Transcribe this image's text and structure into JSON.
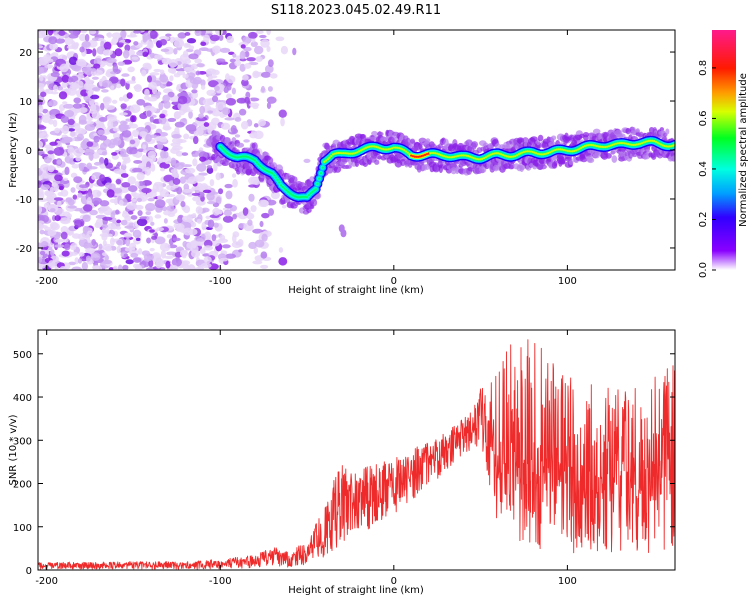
{
  "title": "S118.2023.045.02.49.R11",
  "chart_data": [
    {
      "type": "heatmap",
      "xlabel": "Height of straight line (km)",
      "ylabel": "Frequency (Hz)",
      "xlim": [
        -205,
        162
      ],
      "ylim": [
        -24.5,
        24.5
      ],
      "xticks": [
        -200,
        -100,
        0,
        100
      ],
      "yticks": [
        -20,
        -10,
        0,
        10,
        20
      ],
      "colorbar": {
        "label": "Normalized spectral amplitude",
        "range": [
          0,
          0.95
        ],
        "ticks": [
          "0.0",
          "0.2",
          "0.4",
          "0.6",
          "0.8"
        ],
        "tick_values": [
          0,
          0.2,
          0.4,
          0.6,
          0.8
        ],
        "colormap": "rainbow (purple-blue-cyan-green-yellow-red-pink)"
      },
      "ridge_line": {
        "x": [
          -100,
          -90,
          -80,
          -70,
          -65,
          -60,
          -55,
          -50,
          -45,
          -40,
          -35,
          -30,
          -20,
          -10,
          0,
          10,
          20,
          30,
          40,
          50,
          60,
          70,
          80,
          90,
          100,
          110,
          120,
          130,
          140,
          150,
          160
        ],
        "y": [
          0.5,
          -1.5,
          -2,
          -5,
          -7.5,
          -8.5,
          -9.5,
          -10,
          -8,
          -2,
          -1,
          -1,
          0,
          0.5,
          0.5,
          -1,
          -1,
          -1,
          -1.5,
          -1.5,
          -1,
          -1,
          -0.5,
          -0.5,
          0,
          0.5,
          1,
          1,
          1.5,
          1.5,
          1
        ],
        "peak_amplitude_region_x": [
          10,
          20
        ]
      },
      "noise_region_x": [
        -205,
        -70
      ]
    },
    {
      "type": "line",
      "xlabel": "Height of straight line (km)",
      "ylabel": "SNR (10 * v/v)",
      "xlim": [
        -205,
        162
      ],
      "ylim": [
        0,
        555
      ],
      "xticks": [
        -200,
        -100,
        0,
        100
      ],
      "yticks": [
        0,
        100,
        200,
        300,
        400,
        500
      ],
      "color": "#ee2a2a",
      "envelope": {
        "x": [
          -205,
          -120,
          -100,
          -80,
          -70,
          -60,
          -50,
          -40,
          -30,
          -20,
          -10,
          0,
          10,
          20,
          30,
          40,
          50,
          60,
          70,
          80,
          90,
          100,
          110,
          120,
          130,
          140,
          150,
          162
        ],
        "low": [
          2,
          2,
          2,
          5,
          8,
          5,
          10,
          25,
          60,
          80,
          100,
          130,
          160,
          190,
          230,
          270,
          280,
          100,
          40,
          40,
          40,
          40,
          40,
          40,
          40,
          40,
          40,
          40
        ],
        "high": [
          18,
          20,
          25,
          35,
          55,
          40,
          70,
          150,
          260,
          230,
          250,
          260,
          280,
          300,
          320,
          350,
          420,
          500,
          530,
          550,
          480,
          470,
          450,
          420,
          440,
          430,
          470,
          480
        ]
      }
    }
  ]
}
